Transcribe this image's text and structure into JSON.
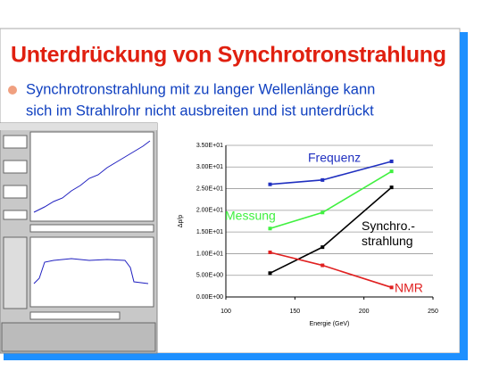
{
  "slide": {
    "title": "Unterdrückung von Synchrotronstrahlung",
    "bullet": [
      "Synchrotronstrahlung mit zu langer Wellenlänge kann",
      "sich im Strahlrohr nicht  ausbreiten und ist unterdrückt"
    ]
  },
  "chart_data": {
    "type": "line",
    "x_label": "Energie (GeV)",
    "y_label": "Δp/p",
    "xlim": [
      100,
      250
    ],
    "xticks": [
      100,
      150,
      200,
      250
    ],
    "ylim": [
      0,
      35
    ],
    "yticks": [
      {
        "value": 0,
        "label": "0.00E+00"
      },
      {
        "value": 5,
        "label": "5.00E+00"
      },
      {
        "value": 10,
        "label": "1.00E+01"
      },
      {
        "value": 15,
        "label": "1.50E+01"
      },
      {
        "value": 20,
        "label": "2.00E+01"
      },
      {
        "value": 25,
        "label": "2.50E+01"
      },
      {
        "value": 30,
        "label": "3.00E+01"
      },
      {
        "value": 35,
        "label": "3.50E+01"
      }
    ],
    "grid": true,
    "x": [
      132,
      170,
      220
    ],
    "series": [
      {
        "name": "Frequenz",
        "color": "#2030c0",
        "values": [
          26,
          27,
          31.3
        ]
      },
      {
        "name": "Messung",
        "color": "#40f040",
        "values": [
          15.8,
          19.5,
          29
        ]
      },
      {
        "name": "Synchro.-\nstrahlung",
        "color": "#000000",
        "values": [
          5.5,
          11.5,
          25.3
        ]
      },
      {
        "name": "NMR",
        "color": "#e02020",
        "values": [
          10.3,
          7.3,
          2.2
        ]
      }
    ]
  }
}
